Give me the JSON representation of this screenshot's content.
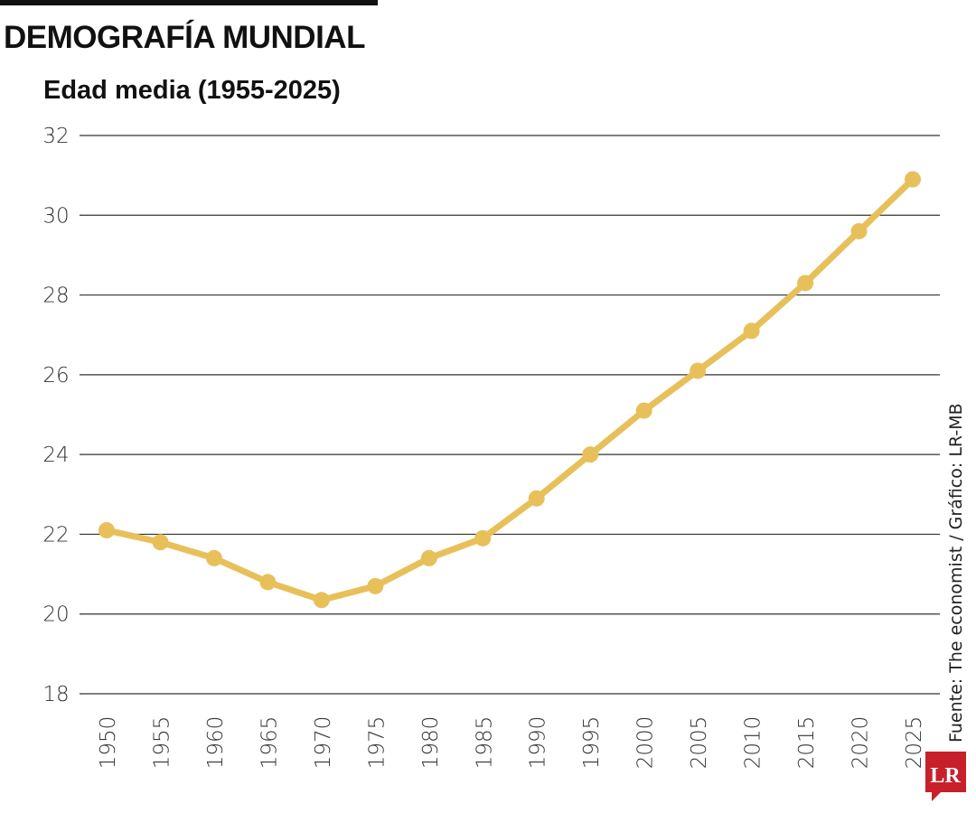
{
  "header": {
    "title": "DEMOGRAFÍA MUNDIAL",
    "subtitle": "Edad media (1955-2025)"
  },
  "source": "Fuente: The economist / Gráfico: LR-MB",
  "logo": {
    "text": "LR",
    "color": "#c8202b"
  },
  "chart_data": {
    "type": "line",
    "title": "Edad media (1955-2025)",
    "xlabel": "",
    "ylabel": "",
    "x": [
      1950,
      1955,
      1960,
      1965,
      1970,
      1975,
      1980,
      1985,
      1990,
      1995,
      2000,
      2005,
      2010,
      2015,
      2020,
      2025
    ],
    "series": [
      {
        "values": [
          22.1,
          21.8,
          21.4,
          20.8,
          20.35,
          20.7,
          21.4,
          21.9,
          22.9,
          24.0,
          25.1,
          26.1,
          27.1,
          28.3,
          29.6,
          30.9
        ]
      }
    ],
    "yticks": [
      18,
      20,
      22,
      24,
      26,
      28,
      30,
      32
    ],
    "ylim": [
      18,
      32
    ],
    "grid": true,
    "line_color": "#e8c05a",
    "grid_color": "#333333"
  }
}
